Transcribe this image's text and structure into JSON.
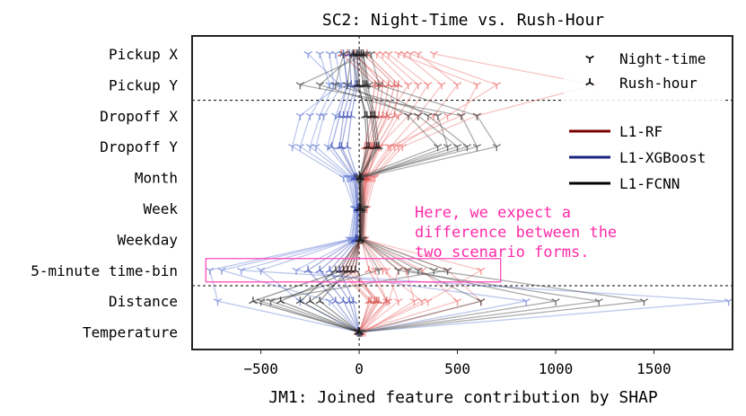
{
  "chart_data": {
    "type": "line",
    "title": "SC2: Night-Time vs. Rush-Hour",
    "xlabel": "JM1: Joined feature contribution by SHAP",
    "ylabel": "",
    "xlim": [
      -850,
      1900
    ],
    "xticks": [
      -500,
      0,
      500,
      1000,
      1500
    ],
    "categories": [
      "Pickup X",
      "Pickup Y",
      "Dropoff X",
      "Dropoff Y",
      "Month",
      "Week",
      "Weekday",
      "5-minute time-bin",
      "Distance",
      "Temperature"
    ],
    "reference_line_x": 0,
    "group_separators_after": [
      "Pickup Y",
      "5-minute time-bin"
    ],
    "grid": false,
    "legend_position": "top-right",
    "legend_markers": [
      {
        "label": "Night-time",
        "marker": "tri_down"
      },
      {
        "label": "Rush-hour",
        "marker": "tri_up"
      }
    ],
    "legend_models": [
      {
        "label": "L1-RF",
        "color": "#7a0000"
      },
      {
        "label": "L1-XGBoost",
        "color": "#1a237e"
      },
      {
        "label": "L1-FCNN",
        "color": "#000000"
      }
    ],
    "annotation": {
      "text": [
        "Here, we expect a",
        "difference between the",
        "two scenario forms."
      ],
      "color": "#ff2aa8",
      "box_color": "#ff4bbf",
      "target_feature": "5-minute time-bin",
      "target_range": [
        -780,
        720
      ]
    },
    "series": [
      {
        "model": "L1-RF",
        "scenario": "Night-time",
        "color": "#ef7a7a",
        "runs": [
          [
            230,
            420,
            300,
            160,
            60,
            25,
            20,
            200,
            150,
            20
          ],
          [
            150,
            350,
            250,
            100,
            40,
            20,
            15,
            120,
            320,
            10
          ],
          [
            300,
            500,
            380,
            180,
            50,
            30,
            10,
            240,
            280,
            30
          ],
          [
            90,
            250,
            150,
            70,
            30,
            10,
            12,
            80,
            140,
            8
          ],
          [
            260,
            700,
            450,
            200,
            70,
            30,
            25,
            320,
            500,
            -10
          ],
          [
            380,
            1200,
            600,
            220,
            80,
            40,
            30,
            450,
            620,
            15
          ],
          [
            120,
            300,
            200,
            110,
            35,
            20,
            18,
            140,
            200,
            5
          ],
          [
            200,
            600,
            520,
            150,
            45,
            25,
            22,
            620,
            350,
            12
          ]
        ]
      },
      {
        "model": "L1-RF",
        "scenario": "Rush-hour",
        "color": "#d9534f",
        "runs": [
          [
            -60,
            100,
            80,
            40,
            20,
            10,
            5,
            -80,
            60,
            0
          ],
          [
            -30,
            150,
            120,
            60,
            30,
            15,
            10,
            -40,
            100,
            5
          ],
          [
            20,
            180,
            140,
            70,
            35,
            12,
            8,
            -20,
            80,
            -5
          ],
          [
            -90,
            80,
            60,
            30,
            15,
            8,
            6,
            -100,
            50,
            3
          ],
          [
            40,
            200,
            180,
            90,
            40,
            20,
            12,
            50,
            140,
            -8
          ],
          [
            -20,
            120,
            100,
            50,
            25,
            12,
            9,
            -60,
            90,
            2
          ]
        ]
      },
      {
        "model": "L1-XGBoost",
        "scenario": "Night-time",
        "color": "#6f86d6",
        "runs": [
          [
            -200,
            -150,
            -250,
            -300,
            -60,
            -20,
            -40,
            -700,
            -150,
            -5
          ],
          [
            -120,
            -90,
            -180,
            -220,
            -40,
            -15,
            -30,
            -500,
            -300,
            -10
          ],
          [
            -260,
            -100,
            -300,
            -340,
            -80,
            -25,
            -50,
            -760,
            -720,
            0
          ],
          [
            -80,
            -60,
            -120,
            -160,
            -30,
            -10,
            -20,
            -320,
            850,
            8
          ],
          [
            -150,
            -130,
            -200,
            -250,
            -50,
            -18,
            -35,
            -600,
            1880,
            -3
          ]
        ]
      },
      {
        "model": "L1-XGBoost",
        "scenario": "Rush-hour",
        "color": "#3b4db5",
        "runs": [
          [
            -50,
            -40,
            -80,
            -100,
            -20,
            -8,
            -15,
            -200,
            -80,
            0
          ],
          [
            -30,
            -20,
            -60,
            -90,
            -15,
            -5,
            -10,
            -150,
            -50,
            2
          ],
          [
            -80,
            -60,
            -100,
            -140,
            -25,
            -10,
            -20,
            -260,
            -120,
            -2
          ],
          [
            -10,
            -10,
            -40,
            -60,
            -10,
            -4,
            -8,
            -100,
            -30,
            1
          ]
        ]
      },
      {
        "model": "L1-FCNN",
        "scenario": "Night-time",
        "color": "#4a4a4a",
        "runs": [
          [
            40,
            -300,
            520,
            600,
            -5,
            20,
            10,
            380,
            1450,
            10
          ],
          [
            -80,
            -120,
            400,
            450,
            10,
            25,
            15,
            250,
            1000,
            5
          ],
          [
            60,
            100,
            600,
            700,
            15,
            30,
            20,
            450,
            -500,
            -5
          ],
          [
            -20,
            -200,
            300,
            500,
            5,
            10,
            8,
            100,
            -450,
            0
          ],
          [
            20,
            50,
            350,
            550,
            8,
            18,
            12,
            200,
            1220,
            3
          ],
          [
            -40,
            -60,
            250,
            400,
            -8,
            15,
            10,
            300,
            620,
            -2
          ]
        ]
      },
      {
        "model": "L1-FCNN",
        "scenario": "Rush-hour",
        "color": "#1a1a1a",
        "runs": [
          [
            0,
            20,
            60,
            80,
            5,
            5,
            5,
            -80,
            -540,
            0
          ],
          [
            -30,
            -10,
            40,
            50,
            3,
            3,
            3,
            -40,
            -400,
            2
          ],
          [
            20,
            40,
            80,
            100,
            8,
            8,
            6,
            -120,
            -300,
            -2
          ],
          [
            -10,
            0,
            30,
            40,
            2,
            2,
            2,
            -20,
            -250,
            0
          ],
          [
            10,
            30,
            70,
            90,
            6,
            6,
            4,
            -60,
            -200,
            1
          ]
        ]
      }
    ]
  }
}
